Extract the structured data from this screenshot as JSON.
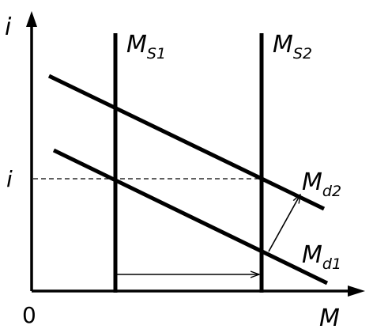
{
  "axes": {
    "y_label": "i",
    "x_label": "M",
    "origin_label": "0"
  },
  "ref_line": {
    "label": "i"
  },
  "supply_curves": [
    {
      "label_main": "M",
      "label_sub": "S1"
    },
    {
      "label_main": "M",
      "label_sub": "S2"
    }
  ],
  "demand_curves": [
    {
      "label_main": "M",
      "label_sub": "d1"
    },
    {
      "label_main": "M",
      "label_sub": "d2"
    }
  ],
  "colors": {
    "ink": "#000000",
    "background": "#ffffff"
  }
}
